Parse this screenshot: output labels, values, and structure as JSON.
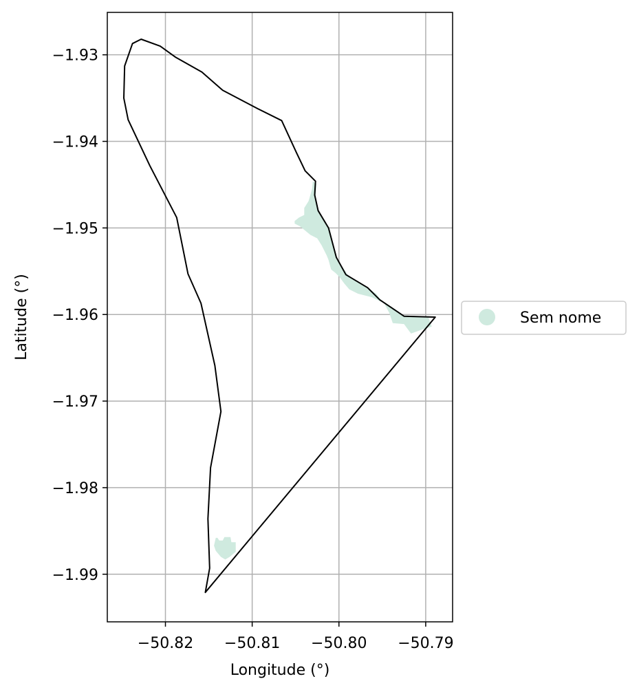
{
  "chart_data": {
    "type": "map",
    "xlabel": "Longitude (°)",
    "ylabel": "Latitude (°)",
    "xlim": [
      -50.8267,
      -50.7869
    ],
    "ylim": [
      -1.9955,
      -1.9251
    ],
    "grid": true,
    "x_ticks": [
      {
        "value": -50.82,
        "label": "−50.82"
      },
      {
        "value": -50.81,
        "label": "−50.81"
      },
      {
        "value": -50.8,
        "label": "−50.80"
      },
      {
        "value": -50.79,
        "label": "−50.79"
      }
    ],
    "y_ticks": [
      {
        "value": -1.93,
        "label": "−1.93"
      },
      {
        "value": -1.94,
        "label": "−1.94"
      },
      {
        "value": -1.95,
        "label": "−1.95"
      },
      {
        "value": -1.96,
        "label": "−1.96"
      },
      {
        "value": -1.97,
        "label": "−1.97"
      },
      {
        "value": -1.98,
        "label": "−1.98"
      },
      {
        "value": -1.99,
        "label": "−1.99"
      }
    ],
    "boundary_color": "#000000",
    "boundary": [
      [
        -50.8228,
        -1.9282
      ],
      [
        -50.8206,
        -1.929
      ],
      [
        -50.8188,
        -1.9303
      ],
      [
        -50.8158,
        -1.932
      ],
      [
        -50.8134,
        -1.9341
      ],
      [
        -50.8094,
        -1.9362
      ],
      [
        -50.8066,
        -1.9376
      ],
      [
        -50.8049,
        -1.9413
      ],
      [
        -50.8039,
        -1.9434
      ],
      [
        -50.8027,
        -1.9446
      ],
      [
        -50.8028,
        -1.9462
      ],
      [
        -50.8024,
        -1.948
      ],
      [
        -50.8012,
        -1.95
      ],
      [
        -50.8003,
        -1.9534
      ],
      [
        -50.7992,
        -1.9554
      ],
      [
        -50.7967,
        -1.9569
      ],
      [
        -50.7953,
        -1.9583
      ],
      [
        -50.7925,
        -1.9602
      ],
      [
        -50.7889,
        -1.9603
      ],
      [
        -50.8154,
        -1.9921
      ],
      [
        -50.8149,
        -1.9893
      ],
      [
        -50.8151,
        -1.9836
      ],
      [
        -50.8148,
        -1.9777
      ],
      [
        -50.8136,
        -1.9712
      ],
      [
        -50.8143,
        -1.9659
      ],
      [
        -50.8159,
        -1.9587
      ],
      [
        -50.8174,
        -1.9553
      ],
      [
        -50.8187,
        -1.9488
      ],
      [
        -50.8218,
        -1.9428
      ],
      [
        -50.8243,
        -1.9375
      ],
      [
        -50.8248,
        -1.935
      ],
      [
        -50.8247,
        -1.9313
      ],
      [
        -50.8238,
        -1.9287
      ],
      [
        -50.8228,
        -1.9282
      ]
    ],
    "series": [
      {
        "name": "Sem nome",
        "color": "#cfeadf",
        "areas": [
          [
            [
              -50.803,
              -1.9446
            ],
            [
              -50.8026,
              -1.9449
            ],
            [
              -50.8027,
              -1.9468
            ],
            [
              -50.8023,
              -1.9481
            ],
            [
              -50.8011,
              -1.95
            ],
            [
              -50.8008,
              -1.9512
            ],
            [
              -50.8003,
              -1.9534
            ],
            [
              -50.7994,
              -1.9548
            ],
            [
              -50.7988,
              -1.9557
            ],
            [
              -50.797,
              -1.9567
            ],
            [
              -50.7957,
              -1.9576
            ],
            [
              -50.7952,
              -1.9583
            ],
            [
              -50.7947,
              -1.9586
            ],
            [
              -50.7935,
              -1.9594
            ],
            [
              -50.7925,
              -1.9601
            ],
            [
              -50.7905,
              -1.9602
            ],
            [
              -50.7897,
              -1.9603
            ],
            [
              -50.7893,
              -1.9614
            ],
            [
              -50.7903,
              -1.9617
            ],
            [
              -50.7917,
              -1.9622
            ],
            [
              -50.7925,
              -1.9611
            ],
            [
              -50.7938,
              -1.961
            ],
            [
              -50.7942,
              -1.9598
            ],
            [
              -50.7948,
              -1.9587
            ],
            [
              -50.7962,
              -1.958
            ],
            [
              -50.7978,
              -1.9576
            ],
            [
              -50.7988,
              -1.9571
            ],
            [
              -50.7994,
              -1.9564
            ],
            [
              -50.7999,
              -1.9557
            ],
            [
              -50.8004,
              -1.9552
            ],
            [
              -50.8009,
              -1.9548
            ],
            [
              -50.8012,
              -1.9537
            ],
            [
              -50.8014,
              -1.9532
            ],
            [
              -50.802,
              -1.952
            ],
            [
              -50.8025,
              -1.9512
            ],
            [
              -50.8033,
              -1.9508
            ],
            [
              -50.8039,
              -1.9503
            ],
            [
              -50.8045,
              -1.9498
            ],
            [
              -50.8051,
              -1.9495
            ],
            [
              -50.8051,
              -1.9492
            ],
            [
              -50.8046,
              -1.9488
            ],
            [
              -50.804,
              -1.9485
            ],
            [
              -50.804,
              -1.9477
            ],
            [
              -50.8035,
              -1.9469
            ],
            [
              -50.8031,
              -1.9455
            ],
            [
              -50.803,
              -1.9446
            ]
          ],
          [
            [
              -50.8142,
              -1.9858
            ],
            [
              -50.8144,
              -1.9867
            ],
            [
              -50.8142,
              -1.9873
            ],
            [
              -50.8136,
              -1.988
            ],
            [
              -50.8131,
              -1.9883
            ],
            [
              -50.8126,
              -1.988
            ],
            [
              -50.8119,
              -1.9874
            ],
            [
              -50.8119,
              -1.9868
            ],
            [
              -50.8119,
              -1.9863
            ],
            [
              -50.8124,
              -1.9863
            ],
            [
              -50.8125,
              -1.9857
            ],
            [
              -50.8132,
              -1.9857
            ],
            [
              -50.8134,
              -1.9861
            ],
            [
              -50.8138,
              -1.9861
            ],
            [
              -50.814,
              -1.9858
            ],
            [
              -50.8142,
              -1.9858
            ]
          ]
        ]
      }
    ],
    "legend": {
      "placement": "outside-right",
      "entries": [
        {
          "label": "Sem nome",
          "color": "#cfeadf"
        }
      ]
    }
  }
}
